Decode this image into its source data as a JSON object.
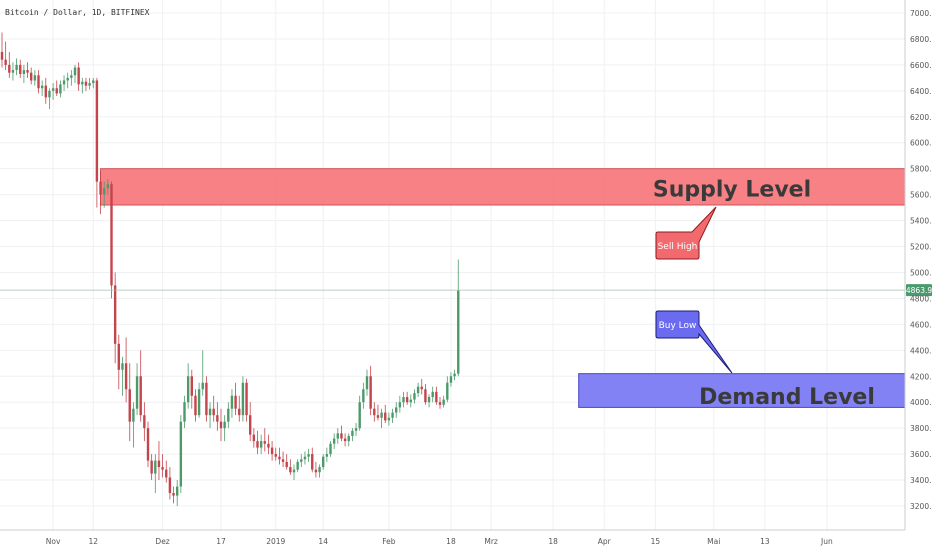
{
  "header": {
    "symbol_title": "Bitcoin / Dollar, 1D, BITFINEX"
  },
  "chart_data": {
    "type": "candlestick",
    "ylim": [
      3100,
      7100
    ],
    "yticks": [
      3200,
      3400,
      3600,
      3800,
      4000,
      4200,
      4400,
      4600,
      4800,
      5000,
      5200,
      5400,
      5600,
      5800,
      6000,
      6200,
      6400,
      6600,
      6800,
      7000
    ],
    "ytick_labels": [
      "3200.0",
      "3400.0",
      "3600.0",
      "3800.0",
      "4000.0",
      "4200.0",
      "4400.0",
      "4600.0",
      "4800.0",
      "5000.0",
      "5200.0",
      "5400.0",
      "5600.0",
      "5800.0",
      "6000.0",
      "6200.0",
      "6400.0",
      "6600.0",
      "6800.0",
      "7000.0"
    ],
    "xticks": [
      {
        "day": 14,
        "label": "Nov"
      },
      {
        "day": 25,
        "label": "12"
      },
      {
        "day": 44,
        "label": "Dez"
      },
      {
        "day": 60,
        "label": "17"
      },
      {
        "day": 75,
        "label": "2019"
      },
      {
        "day": 88,
        "label": "14"
      },
      {
        "day": 106,
        "label": "Feb"
      },
      {
        "day": 123,
        "label": "18"
      },
      {
        "day": 134,
        "label": "Mrz"
      },
      {
        "day": 151,
        "label": "18"
      },
      {
        "day": 165,
        "label": "Apr"
      },
      {
        "day": 179,
        "label": "15"
      },
      {
        "day": 195,
        "label": "Mai"
      },
      {
        "day": 209,
        "label": "13"
      },
      {
        "day": 226,
        "label": "Jun"
      }
    ],
    "last_price": 4863.9,
    "last_price_label": "4863.9",
    "candles": [
      [
        6700,
        6850,
        6580,
        6640
      ],
      [
        6640,
        6780,
        6560,
        6600
      ],
      [
        6600,
        6700,
        6500,
        6540
      ],
      [
        6540,
        6620,
        6480,
        6560
      ],
      [
        6560,
        6650,
        6520,
        6600
      ],
      [
        6600,
        6640,
        6500,
        6530
      ],
      [
        6530,
        6600,
        6460,
        6560
      ],
      [
        6560,
        6620,
        6500,
        6540
      ],
      [
        6540,
        6580,
        6450,
        6480
      ],
      [
        6480,
        6560,
        6440,
        6520
      ],
      [
        6520,
        6560,
        6380,
        6420
      ],
      [
        6420,
        6480,
        6360,
        6440
      ],
      [
        6440,
        6500,
        6300,
        6350
      ],
      [
        6350,
        6420,
        6260,
        6400
      ],
      [
        6400,
        6460,
        6330,
        6420
      ],
      [
        6420,
        6480,
        6360,
        6380
      ],
      [
        6380,
        6480,
        6350,
        6450
      ],
      [
        6450,
        6520,
        6400,
        6480
      ],
      [
        6480,
        6540,
        6420,
        6500
      ],
      [
        6500,
        6560,
        6440,
        6520
      ],
      [
        6520,
        6600,
        6460,
        6580
      ],
      [
        6580,
        6620,
        6400,
        6450
      ],
      [
        6450,
        6500,
        6380,
        6470
      ],
      [
        6470,
        6500,
        6400,
        6440
      ],
      [
        6440,
        6500,
        6410,
        6460
      ],
      [
        6460,
        6500,
        6420,
        6480
      ],
      [
        6480,
        6500,
        5500,
        5700
      ],
      [
        5700,
        5780,
        5450,
        5600
      ],
      [
        5600,
        5700,
        5500,
        5650
      ],
      [
        5650,
        5720,
        5600,
        5680
      ],
      [
        5680,
        5700,
        4800,
        4900
      ],
      [
        4900,
        5000,
        4300,
        4450
      ],
      [
        4450,
        4520,
        4100,
        4250
      ],
      [
        4250,
        4350,
        4050,
        4300
      ],
      [
        4300,
        4500,
        4000,
        4100
      ],
      [
        4100,
        4300,
        3700,
        3850
      ],
      [
        3850,
        4000,
        3650,
        3950
      ],
      [
        3950,
        4300,
        3900,
        4200
      ],
      [
        4200,
        4400,
        3850,
        3900
      ],
      [
        3900,
        4000,
        3700,
        3800
      ],
      [
        3800,
        3850,
        3500,
        3550
      ],
      [
        3550,
        3600,
        3400,
        3450
      ],
      [
        3450,
        3600,
        3300,
        3550
      ],
      [
        3550,
        3700,
        3400,
        3500
      ],
      [
        3500,
        3600,
        3420,
        3480
      ],
      [
        3480,
        3550,
        3380,
        3420
      ],
      [
        3420,
        3500,
        3250,
        3300
      ],
      [
        3300,
        3350,
        3220,
        3280
      ],
      [
        3280,
        3400,
        3200,
        3350
      ],
      [
        3350,
        3900,
        3300,
        3850
      ],
      [
        3850,
        4050,
        3800,
        4000
      ],
      [
        4000,
        4300,
        3950,
        4200
      ],
      [
        4200,
        4250,
        3950,
        4050
      ],
      [
        4050,
        4100,
        3850,
        3900
      ],
      [
        3900,
        4150,
        3880,
        4100
      ],
      [
        4100,
        4400,
        4050,
        4150
      ],
      [
        4150,
        4200,
        3850,
        3900
      ],
      [
        3900,
        4000,
        3800,
        3950
      ],
      [
        3950,
        4050,
        3850,
        3900
      ],
      [
        3900,
        4000,
        3780,
        3850
      ],
      [
        3850,
        3950,
        3700,
        3800
      ],
      [
        3800,
        3900,
        3700,
        3850
      ],
      [
        3850,
        4000,
        3800,
        3950
      ],
      [
        3950,
        4100,
        3880,
        4050
      ],
      [
        4050,
        4150,
        3900,
        3950
      ],
      [
        3950,
        4050,
        3850,
        3900
      ],
      [
        3900,
        4200,
        3850,
        4150
      ],
      [
        4150,
        4180,
        3850,
        3900
      ],
      [
        3900,
        4000,
        3700,
        3750
      ],
      [
        3750,
        3800,
        3650,
        3700
      ],
      [
        3700,
        3780,
        3600,
        3650
      ],
      [
        3650,
        3750,
        3600,
        3700
      ],
      [
        3700,
        3800,
        3620,
        3680
      ],
      [
        3680,
        3750,
        3600,
        3650
      ],
      [
        3650,
        3700,
        3550,
        3600
      ],
      [
        3600,
        3650,
        3550,
        3580
      ],
      [
        3580,
        3650,
        3520,
        3560
      ],
      [
        3560,
        3620,
        3500,
        3540
      ],
      [
        3540,
        3600,
        3480,
        3500
      ],
      [
        3500,
        3560,
        3440,
        3460
      ],
      [
        3460,
        3520,
        3400,
        3480
      ],
      [
        3480,
        3560,
        3460,
        3540
      ],
      [
        3540,
        3600,
        3500,
        3560
      ],
      [
        3560,
        3620,
        3520,
        3580
      ],
      [
        3580,
        3640,
        3540,
        3600
      ],
      [
        3600,
        3650,
        3460,
        3480
      ],
      [
        3480,
        3540,
        3420,
        3460
      ],
      [
        3460,
        3520,
        3420,
        3500
      ],
      [
        3500,
        3600,
        3480,
        3580
      ],
      [
        3580,
        3650,
        3540,
        3600
      ],
      [
        3600,
        3700,
        3580,
        3680
      ],
      [
        3680,
        3760,
        3640,
        3720
      ],
      [
        3720,
        3800,
        3680,
        3760
      ],
      [
        3760,
        3820,
        3700,
        3720
      ],
      [
        3720,
        3760,
        3660,
        3700
      ],
      [
        3700,
        3760,
        3660,
        3740
      ],
      [
        3740,
        3800,
        3700,
        3780
      ],
      [
        3780,
        3840,
        3740,
        3800
      ],
      [
        3800,
        4050,
        3780,
        4000
      ],
      [
        4000,
        4150,
        3950,
        4100
      ],
      [
        4100,
        4250,
        4050,
        4200
      ],
      [
        4200,
        4280,
        3900,
        3950
      ],
      [
        3950,
        4000,
        3850,
        3900
      ],
      [
        3900,
        3980,
        3860,
        3880
      ],
      [
        3880,
        3950,
        3800,
        3920
      ],
      [
        3920,
        3980,
        3840,
        3860
      ],
      [
        3860,
        3920,
        3820,
        3880
      ],
      [
        3880,
        3950,
        3840,
        3920
      ],
      [
        3920,
        4000,
        3880,
        3960
      ],
      [
        3960,
        4050,
        3920,
        4000
      ],
      [
        4000,
        4080,
        3960,
        4040
      ],
      [
        4040,
        4080,
        3980,
        4000
      ],
      [
        4000,
        4060,
        3960,
        4020
      ],
      [
        4020,
        4100,
        3990,
        4070
      ],
      [
        4070,
        4150,
        4040,
        4120
      ],
      [
        4120,
        4180,
        4060,
        4100
      ],
      [
        4100,
        4140,
        3980,
        4000
      ],
      [
        4000,
        4060,
        3960,
        4040
      ],
      [
        4040,
        4120,
        4000,
        4080
      ],
      [
        4080,
        4120,
        3980,
        4000
      ],
      [
        4000,
        4040,
        3950,
        3980
      ],
      [
        3980,
        4050,
        3960,
        4020
      ],
      [
        4020,
        4200,
        4000,
        4150
      ],
      [
        4150,
        4230,
        4120,
        4200
      ],
      [
        4200,
        4250,
        4170,
        4220
      ],
      [
        4220,
        5100,
        4200,
        4860
      ]
    ]
  },
  "zones": {
    "supply": {
      "top": 5800,
      "bottom": 5520,
      "start_day": 27,
      "label": "Supply Level",
      "fill": "#f77b7f",
      "border": "#d14a4e"
    },
    "demand": {
      "top": 4220,
      "bottom": 3960,
      "start_day": 158,
      "label": "Demand Level",
      "fill": "#7c7cf4",
      "border": "#3d3dc4"
    }
  },
  "callouts": {
    "sell": {
      "text": "Sell High",
      "fill": "#f26a6e",
      "border": "#8c1c20"
    },
    "buy": {
      "text": "Buy Low",
      "fill": "#6b6bf0",
      "border": "#1d1d7a"
    }
  },
  "colors": {
    "up": "#4c9a6a",
    "down": "#c4444c",
    "grid": "#eef0f3",
    "axis_text": "#555555",
    "price_tag": "#4a9a6e"
  }
}
